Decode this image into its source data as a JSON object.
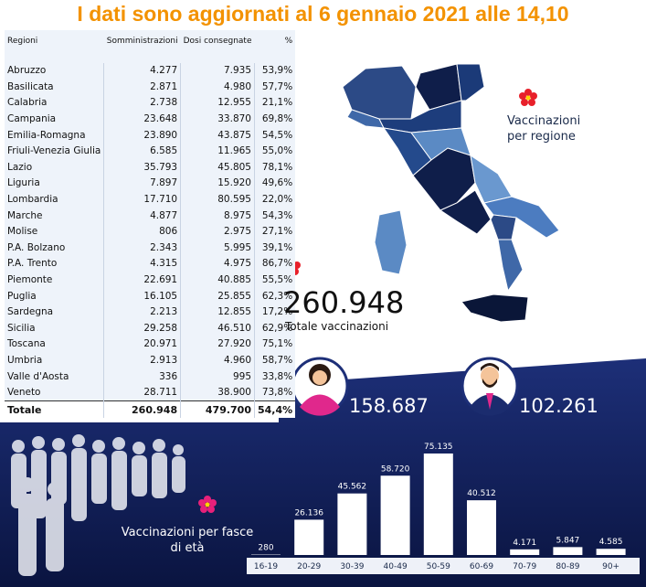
{
  "title": "I dati sono aggiornati al 6 gennaio 2021 alle 14,10",
  "table": {
    "header": [
      "Regioni",
      "Somministrazioni",
      "Dosi consegnate",
      "%"
    ],
    "rows": [
      [
        "Abruzzo",
        "4.277",
        "7.935",
        "53,9%"
      ],
      [
        "Basilicata",
        "2.871",
        "4.980",
        "57,7%"
      ],
      [
        "Calabria",
        "2.738",
        "12.955",
        "21,1%"
      ],
      [
        "Campania",
        "23.648",
        "33.870",
        "69,8%"
      ],
      [
        "Emilia-Romagna",
        "23.890",
        "43.875",
        "54,5%"
      ],
      [
        "Friuli-Venezia Giulia",
        "6.585",
        "11.965",
        "55,0%"
      ],
      [
        "Lazio",
        "35.793",
        "45.805",
        "78,1%"
      ],
      [
        "Liguria",
        "7.897",
        "15.920",
        "49,6%"
      ],
      [
        "Lombardia",
        "17.710",
        "80.595",
        "22,0%"
      ],
      [
        "Marche",
        "4.877",
        "8.975",
        "54,3%"
      ],
      [
        "Molise",
        "806",
        "2.975",
        "27,1%"
      ],
      [
        "P.A. Bolzano",
        "2.343",
        "5.995",
        "39,1%"
      ],
      [
        "P.A. Trento",
        "4.315",
        "4.975",
        "86,7%"
      ],
      [
        "Piemonte",
        "22.691",
        "40.885",
        "55,5%"
      ],
      [
        "Puglia",
        "16.105",
        "25.855",
        "62,3%"
      ],
      [
        "Sardegna",
        "2.213",
        "12.855",
        "17,2%"
      ],
      [
        "Sicilia",
        "29.258",
        "46.510",
        "62,9%"
      ],
      [
        "Toscana",
        "20.971",
        "27.920",
        "75,1%"
      ],
      [
        "Umbria",
        "2.913",
        "4.960",
        "58,7%"
      ],
      [
        "Valle d'Aosta",
        "336",
        "995",
        "33,8%"
      ],
      [
        "Veneto",
        "28.711",
        "38.900",
        "73,8%"
      ]
    ],
    "total": [
      "Totale",
      "260.948",
      "479.700",
      "54,4%"
    ]
  },
  "map_label": "Vaccinazioni per regione",
  "total_vaccinations": {
    "value": "260.948",
    "label": "Totale vaccinazioni"
  },
  "women": "158.687",
  "men": "102.261",
  "chart_data": {
    "type": "bar",
    "title": "Vaccinazioni per fasce di età",
    "categories": [
      "16-19",
      "20-29",
      "30-39",
      "40-49",
      "50-59",
      "60-69",
      "70-79",
      "80-89",
      "90+"
    ],
    "values": [
      280,
      26136,
      45562,
      58720,
      75135,
      40512,
      4171,
      5847,
      4585
    ],
    "value_labels": [
      "280",
      "26.136",
      "45.562",
      "58.720",
      "75.135",
      "40.512",
      "4.171",
      "5.847",
      "4.585"
    ],
    "color": "#ffffff"
  }
}
